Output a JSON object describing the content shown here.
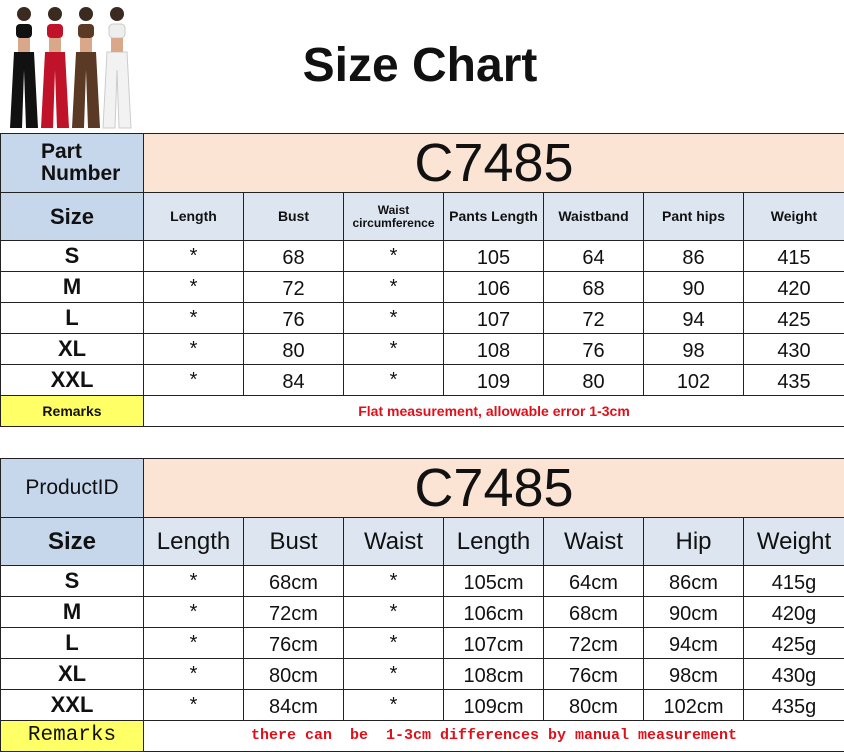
{
  "header": {
    "title": "Size Chart"
  },
  "table1": {
    "id_label": "Part Number",
    "code": "C7485",
    "columns": [
      "Size",
      "Length",
      "Bust",
      "Waist circumference",
      "Pants Length",
      "Waistband",
      "Pant hips",
      "Weight"
    ],
    "rows": [
      [
        "S",
        "*",
        68,
        "*",
        105,
        64,
        86,
        415
      ],
      [
        "M",
        "*",
        72,
        "*",
        106,
        68,
        90,
        420
      ],
      [
        "L",
        "*",
        76,
        "*",
        107,
        72,
        94,
        425
      ],
      [
        "XL",
        "*",
        80,
        "*",
        108,
        76,
        98,
        430
      ],
      [
        "XXL",
        "*",
        84,
        "*",
        109,
        80,
        102,
        435
      ]
    ],
    "remarks_label": "Remarks",
    "remarks": "Flat measurement, allowable error 1-3cm"
  },
  "table2": {
    "id_label": "ProductID",
    "code": "C7485",
    "columns": [
      "Size",
      "Length",
      "Bust",
      "Waist",
      "Length",
      "Waist",
      "Hip",
      "Weight"
    ],
    "rows": [
      [
        "S",
        "*",
        "68cm",
        "*",
        "105cm",
        "64cm",
        "86cm",
        "415g"
      ],
      [
        "M",
        "*",
        "72cm",
        "*",
        "106cm",
        "68cm",
        "90cm",
        "420g"
      ],
      [
        "L",
        "*",
        "76cm",
        "*",
        "107cm",
        "72cm",
        "94cm",
        "425g"
      ],
      [
        "XL",
        "*",
        "80cm",
        "*",
        "108cm",
        "76cm",
        "98cm",
        "430g"
      ],
      [
        "XXL",
        "*",
        "84cm",
        "*",
        "109cm",
        "80cm",
        "102cm",
        "435g"
      ]
    ],
    "remarks_label": "Remarks",
    "remarks": "there can  be  1-3cm differences by manual measurement"
  }
}
